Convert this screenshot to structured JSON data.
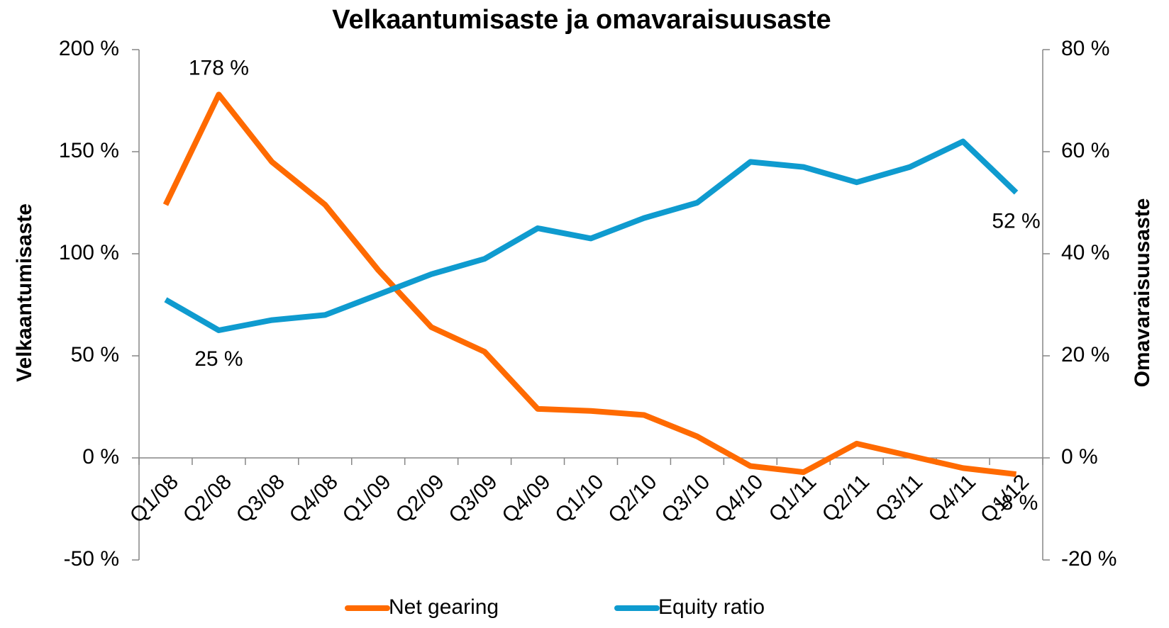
{
  "chart_data": {
    "type": "line",
    "title": "Velkaantumisaste ja omavaraisuusaste",
    "y_label": "Velkaantumisaste",
    "y2_label": "Omavaraisuusaste",
    "categories": [
      "Q1/08",
      "Q2/08",
      "Q3/08",
      "Q4/08",
      "Q1/09",
      "Q2/09",
      "Q3/09",
      "Q4/09",
      "Q1/10",
      "Q2/10",
      "Q3/10",
      "Q4/10",
      "Q1/11",
      "Q2/11",
      "Q3/11",
      "Q4/11",
      "Q1/12"
    ],
    "series": [
      {
        "name": "Net gearing",
        "color": "#ff6a00",
        "axis": "y",
        "values": [
          124,
          178,
          145,
          124,
          92,
          64,
          52,
          24,
          23,
          21,
          10.5,
          -4,
          -7,
          7,
          1,
          -5,
          -8
        ],
        "value_labels": [
          null,
          "178 %",
          null,
          null,
          null,
          null,
          null,
          null,
          null,
          null,
          null,
          null,
          null,
          null,
          null,
          null,
          "-8 %"
        ]
      },
      {
        "name": "Equity ratio",
        "color": "#0f9bcf",
        "axis": "y2",
        "values": [
          31,
          25,
          27,
          28,
          32,
          36,
          39,
          45,
          43,
          47,
          50,
          58,
          57,
          54,
          57,
          62,
          52
        ],
        "value_labels": [
          null,
          "25 %",
          null,
          null,
          null,
          null,
          null,
          null,
          null,
          null,
          null,
          null,
          null,
          null,
          null,
          null,
          "52 %"
        ]
      }
    ],
    "ylim": [
      -50,
      200
    ],
    "yticks": [
      {
        "value": -50,
        "label": "-50 %"
      },
      {
        "value": 0,
        "label": "0 %"
      },
      {
        "value": 50,
        "label": "50 %"
      },
      {
        "value": 100,
        "label": "100 %"
      },
      {
        "value": 150,
        "label": "150 %"
      },
      {
        "value": 200,
        "label": "200 %"
      }
    ],
    "y2lim": [
      -20,
      80
    ],
    "y2ticks": [
      {
        "value": -20,
        "label": "-20 %"
      },
      {
        "value": 0,
        "label": "0 %"
      },
      {
        "value": 20,
        "label": "20 %"
      },
      {
        "value": 40,
        "label": "40 %"
      },
      {
        "value": 60,
        "label": "60 %"
      },
      {
        "value": 80,
        "label": "80 %"
      }
    ],
    "legend": "bottom"
  }
}
